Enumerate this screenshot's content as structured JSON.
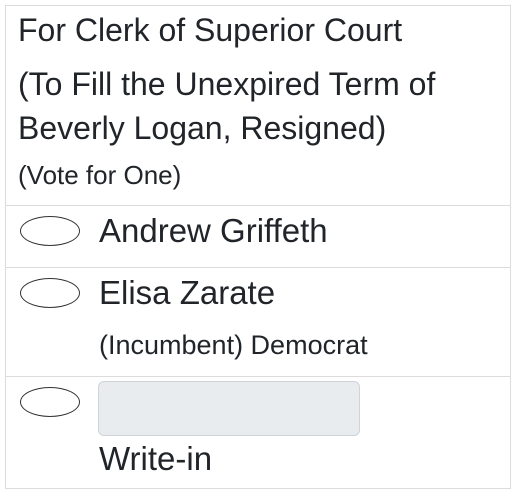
{
  "contest": {
    "office": "For Clerk of Superior Court",
    "subtitle_line1": "(To Fill the Unexpired Term of",
    "subtitle_line2": "Beverly Logan, Resigned)",
    "instruction": "(Vote for One)"
  },
  "candidates": [
    {
      "name": "Andrew Griffeth",
      "party": ""
    },
    {
      "name": "Elisa Zarate",
      "party": "(Incumbent) Democrat"
    }
  ],
  "writein": {
    "label": "Write-in",
    "value": "",
    "placeholder": ""
  }
}
